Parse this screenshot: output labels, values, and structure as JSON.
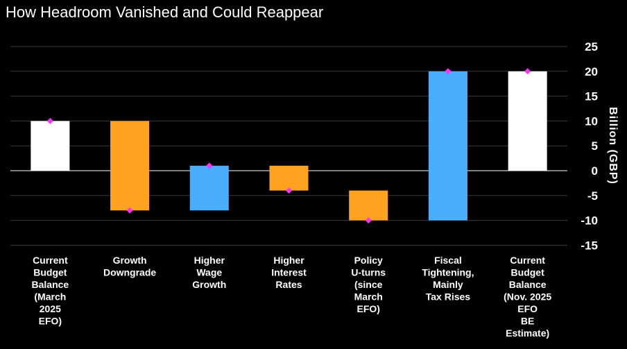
{
  "chart_data": {
    "type": "waterfall",
    "title": "How Headroom Vanished and Could Reappear",
    "ylabel": "Billion (GBP)",
    "ylim": [
      -15,
      25
    ],
    "yticks": [
      25,
      20,
      15,
      10,
      5,
      0,
      -5,
      -10,
      -15
    ],
    "grid": true,
    "colors": {
      "total": "#ffffff",
      "decrease": "#ffa21f",
      "increase": "#4aaefc",
      "marker": "#ff33ff"
    },
    "bars": [
      {
        "label": [
          "Current",
          "Budget",
          "Balance",
          "(March",
          "2025",
          "EFO)"
        ],
        "start": 0,
        "end": 10,
        "kind": "total"
      },
      {
        "label": [
          "Growth",
          "Downgrade"
        ],
        "start": 10,
        "end": -8,
        "kind": "decrease"
      },
      {
        "label": [
          "Higher",
          "Wage",
          "Growth"
        ],
        "start": -8,
        "end": 1,
        "kind": "increase"
      },
      {
        "label": [
          "Higher",
          "Interest",
          "Rates"
        ],
        "start": 1,
        "end": -4,
        "kind": "decrease"
      },
      {
        "label": [
          "Policy",
          "U-turns",
          "(since",
          "March",
          "EFO)"
        ],
        "start": -4,
        "end": -10,
        "kind": "decrease"
      },
      {
        "label": [
          "Fiscal",
          "Tightening,",
          "Mainly",
          "Tax Rises"
        ],
        "start": -10,
        "end": 20,
        "kind": "increase"
      },
      {
        "label": [
          "Current",
          "Budget",
          "Balance",
          "(Nov. 2025",
          "EFO",
          "BE",
          "Estimate)"
        ],
        "start": 0,
        "end": 20,
        "kind": "total"
      }
    ]
  }
}
